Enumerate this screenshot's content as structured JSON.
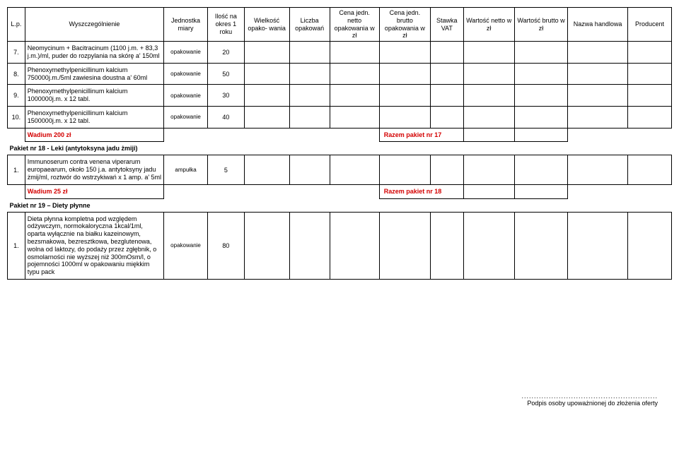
{
  "headers": {
    "lp": "L.p.",
    "desc": "Wyszczególnienie",
    "unit": "Jednostka miary",
    "qty": "Ilość na okres 1 roku",
    "size": "Wielkość opako- wania",
    "pack": "Liczba opakowań",
    "net": "Cena jedn. netto opakowania w zł",
    "gross": "Cena jedn. brutto opakowania w zł",
    "vat": "Stawka VAT",
    "valn": "Wartość netto w zł",
    "valg": "Wartość brutto w zł",
    "name": "Nazwa handlowa",
    "prod": "Producent"
  },
  "rows": [
    {
      "lp": "7.",
      "desc": "Neomycinum + Bacitracinum (1100 j.m. + 83,3 j.m.)/ml, puder do rozpylania na skórę a' 150ml",
      "unit": "opakowanie",
      "qty": "20"
    },
    {
      "lp": "8.",
      "desc": "Phenoxymethylpenicillinum kalcium 750000j.m./5ml zawiesina doustna a' 60ml",
      "unit": "opakowanie",
      "qty": "50"
    },
    {
      "lp": "9.",
      "desc": "Phenoxymethylpenicillinum kalcium 1000000j.m. x 12 tabl.",
      "unit": "opakowanie",
      "qty": "30"
    },
    {
      "lp": "10.",
      "desc": "Phenoxymethylpenicillinum kalcium 1500000j.m. x 12 tabl.",
      "unit": "opakowanie",
      "qty": "40"
    }
  ],
  "wadium1": "Wadium  200 zł",
  "razem1": "Razem pakiet nr 17",
  "section18": "Pakiet nr 18  - Leki (antytoksyna jadu żmiji)",
  "rows18": [
    {
      "lp": "1.",
      "desc": "Immunoserum contra venena viperarum europaearum, około 150 j.a. antytoksyny jadu żmij/ml, roztwór do wstrzykiwań x 1 amp. a' 5ml",
      "unit": "ampułka",
      "qty": "5"
    }
  ],
  "wadium2": "Wadium  25 zł",
  "razem2": "Razem pakiet nr 18",
  "section19": "Pakiet nr 19 – Diety płynne",
  "rows19": [
    {
      "lp": "1.",
      "desc": "Dieta płynna kompletna pod względem odżywczym, normokaloryczna 1kcal/1ml, oparta wyłącznie na białku kazeinowym, bezsmakowa, bezresztkowa, bezglutenowa, wolna od laktozy, do podaży przez zgłębnik, o osmolarności nie wyższej niż 300mOsm/l, o pojemności 1000ml w opakowaniu miękkim typu pack",
      "unit": "opakowanie",
      "qty": "80"
    }
  ],
  "footer_dots": ".......................................................",
  "footer_text": "Podpis osoby upoważnionej do złożenia oferty"
}
